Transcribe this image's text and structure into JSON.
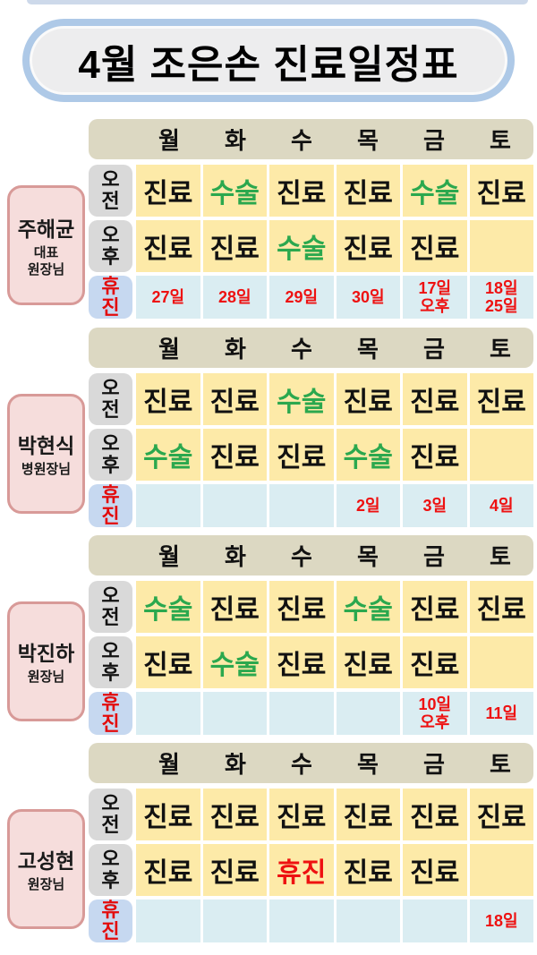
{
  "page": {
    "title": "4월 조은손 진료일정표"
  },
  "days": [
    "월",
    "화",
    "수",
    "목",
    "금",
    "토"
  ],
  "row_labels": {
    "am": "오전",
    "pm": "오후",
    "off": "휴진"
  },
  "colors": {
    "surgery_green": "#2ba84e",
    "off_red": "#ee1111",
    "cell_yellow": "#fdeaa8",
    "off_cell_blue": "#daedf2",
    "day_bar_tan": "#dcd8c2",
    "label_gray": "#d9d9d9",
    "off_label_blue": "#c6d8f0",
    "doctor_pink": "#f6dddc",
    "doctor_border": "#d89a98",
    "title_border": "#aec9e7"
  },
  "sections": [
    {
      "doctor": {
        "name": "주해균",
        "title": "대표\n원장님"
      },
      "am": [
        {
          "text": "진료",
          "color": "black"
        },
        {
          "text": "수술",
          "color": "green"
        },
        {
          "text": "진료",
          "color": "black"
        },
        {
          "text": "진료",
          "color": "black"
        },
        {
          "text": "수술",
          "color": "green"
        },
        {
          "text": "진료",
          "color": "black"
        }
      ],
      "pm": [
        {
          "text": "진료",
          "color": "black"
        },
        {
          "text": "진료",
          "color": "black"
        },
        {
          "text": "수술",
          "color": "green"
        },
        {
          "text": "진료",
          "color": "black"
        },
        {
          "text": "진료",
          "color": "black"
        },
        {
          "text": "",
          "color": "black"
        }
      ],
      "off": [
        {
          "text": "27일"
        },
        {
          "text": "28일"
        },
        {
          "text": "29일"
        },
        {
          "text": "30일"
        },
        {
          "text": "17일\n오후"
        },
        {
          "text": "18일\n25일"
        }
      ]
    },
    {
      "doctor": {
        "name": "박현식",
        "title": "병원장님"
      },
      "am": [
        {
          "text": "진료",
          "color": "black"
        },
        {
          "text": "진료",
          "color": "black"
        },
        {
          "text": "수술",
          "color": "green"
        },
        {
          "text": "진료",
          "color": "black"
        },
        {
          "text": "진료",
          "color": "black"
        },
        {
          "text": "진료",
          "color": "black"
        }
      ],
      "pm": [
        {
          "text": "수술",
          "color": "green"
        },
        {
          "text": "진료",
          "color": "black"
        },
        {
          "text": "진료",
          "color": "black"
        },
        {
          "text": "수술",
          "color": "green"
        },
        {
          "text": "진료",
          "color": "black"
        },
        {
          "text": "",
          "color": "black"
        }
      ],
      "off": [
        {
          "text": ""
        },
        {
          "text": ""
        },
        {
          "text": ""
        },
        {
          "text": "2일"
        },
        {
          "text": "3일"
        },
        {
          "text": "4일"
        }
      ]
    },
    {
      "doctor": {
        "name": "박진하",
        "title": "원장님"
      },
      "am": [
        {
          "text": "수술",
          "color": "green"
        },
        {
          "text": "진료",
          "color": "black"
        },
        {
          "text": "진료",
          "color": "black"
        },
        {
          "text": "수술",
          "color": "green"
        },
        {
          "text": "진료",
          "color": "black"
        },
        {
          "text": "진료",
          "color": "black"
        }
      ],
      "pm": [
        {
          "text": "진료",
          "color": "black"
        },
        {
          "text": "수술",
          "color": "green"
        },
        {
          "text": "진료",
          "color": "black"
        },
        {
          "text": "진료",
          "color": "black"
        },
        {
          "text": "진료",
          "color": "black"
        },
        {
          "text": "",
          "color": "black"
        }
      ],
      "off": [
        {
          "text": ""
        },
        {
          "text": ""
        },
        {
          "text": ""
        },
        {
          "text": ""
        },
        {
          "text": "10일\n오후"
        },
        {
          "text": "11일"
        }
      ]
    },
    {
      "doctor": {
        "name": "고성현",
        "title": "원장님"
      },
      "am": [
        {
          "text": "진료",
          "color": "black"
        },
        {
          "text": "진료",
          "color": "black"
        },
        {
          "text": "진료",
          "color": "black"
        },
        {
          "text": "진료",
          "color": "black"
        },
        {
          "text": "진료",
          "color": "black"
        },
        {
          "text": "진료",
          "color": "black"
        }
      ],
      "pm": [
        {
          "text": "진료",
          "color": "black"
        },
        {
          "text": "진료",
          "color": "black"
        },
        {
          "text": "휴진",
          "color": "red"
        },
        {
          "text": "진료",
          "color": "black"
        },
        {
          "text": "진료",
          "color": "black"
        },
        {
          "text": "",
          "color": "black"
        }
      ],
      "off": [
        {
          "text": ""
        },
        {
          "text": ""
        },
        {
          "text": ""
        },
        {
          "text": ""
        },
        {
          "text": ""
        },
        {
          "text": "18일"
        }
      ]
    }
  ]
}
